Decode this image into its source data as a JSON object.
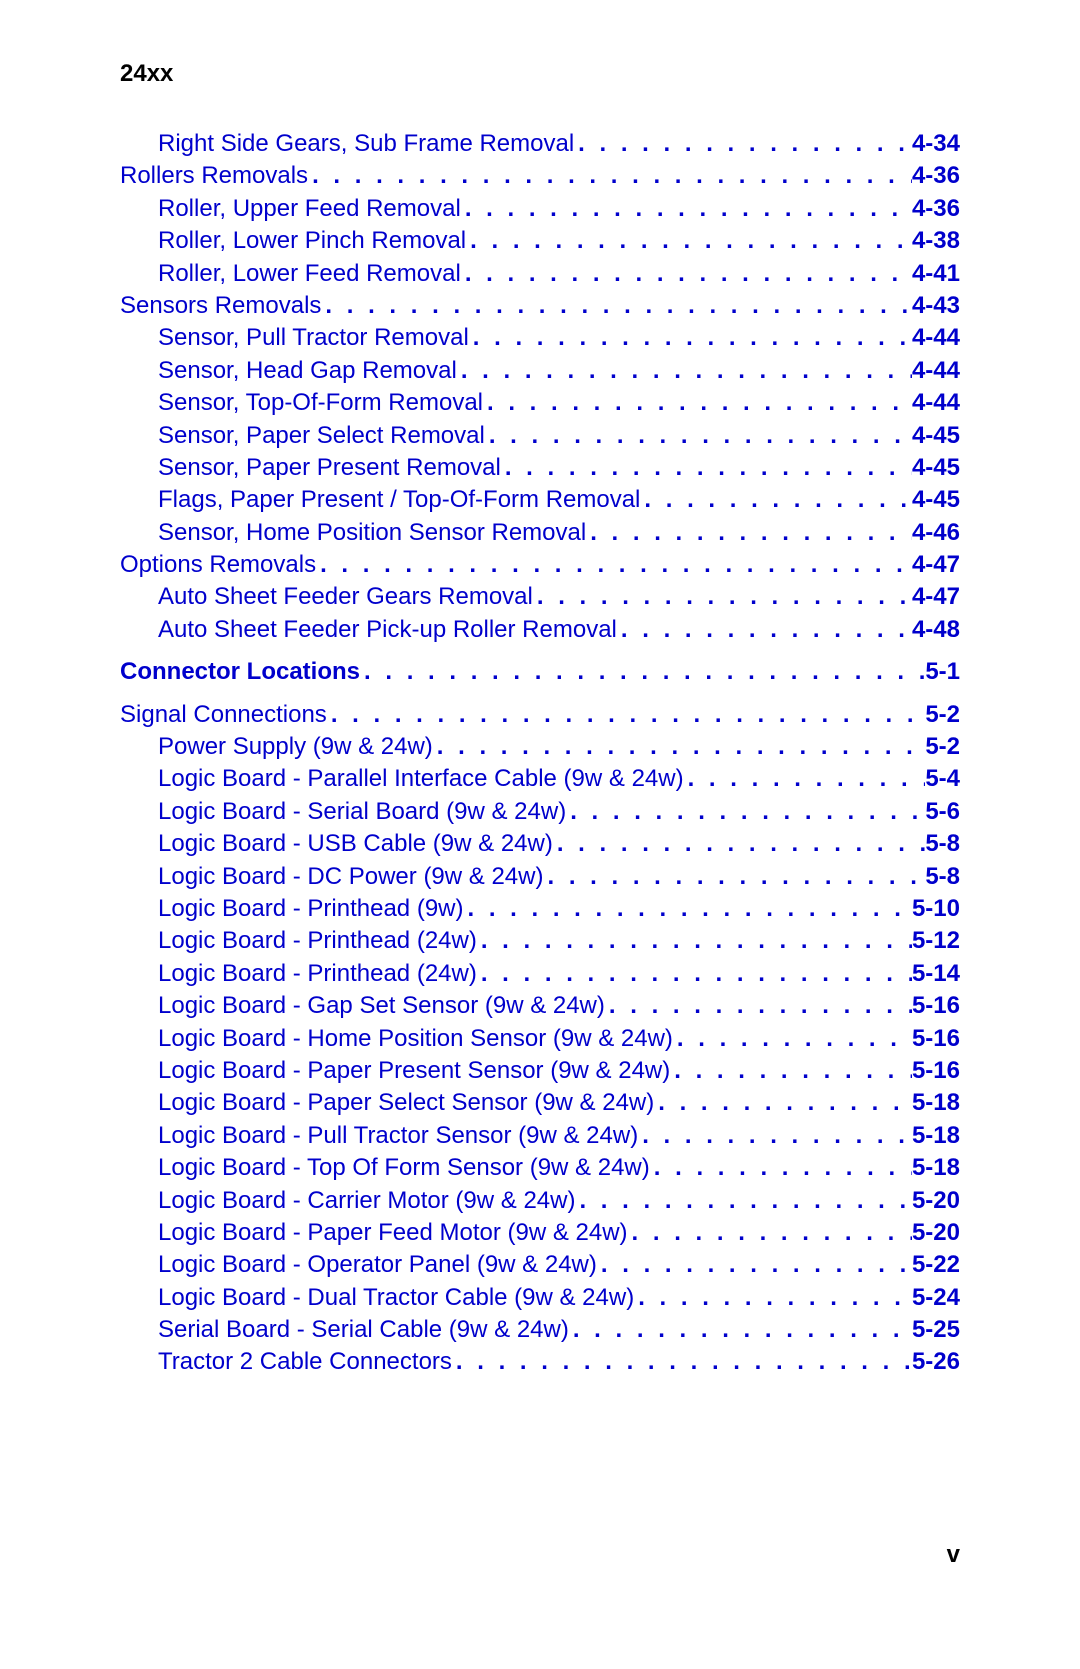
{
  "header": "24xx",
  "page_number": "v",
  "colors": {
    "link_color": "#0000cc",
    "text_color": "#000000",
    "background": "#ffffff"
  },
  "typography": {
    "font_family": "Arial, Helvetica, sans-serif",
    "body_font_size_pt": 18,
    "header_font_size_pt": 18
  },
  "toc": [
    {
      "label": "Right Side Gears, Sub Frame Removal",
      "page": "4-34",
      "indent": 2,
      "bold": false
    },
    {
      "label": "Rollers Removals",
      "page": "4-36",
      "indent": 1,
      "bold": false
    },
    {
      "label": "Roller, Upper Feed Removal",
      "page": "4-36",
      "indent": 2,
      "bold": false
    },
    {
      "label": "Roller, Lower Pinch Removal",
      "page": "4-38",
      "indent": 2,
      "bold": false
    },
    {
      "label": "Roller, Lower Feed Removal",
      "page": "4-41",
      "indent": 2,
      "bold": false
    },
    {
      "label": "Sensors Removals",
      "page": "4-43",
      "indent": 1,
      "bold": false
    },
    {
      "label": "Sensor, Pull Tractor Removal",
      "page": "4-44",
      "indent": 2,
      "bold": false
    },
    {
      "label": "Sensor, Head Gap Removal",
      "page": "4-44",
      "indent": 2,
      "bold": false
    },
    {
      "label": "Sensor, Top-Of-Form Removal",
      "page": "4-44",
      "indent": 2,
      "bold": false
    },
    {
      "label": "Sensor, Paper Select Removal",
      "page": "4-45",
      "indent": 2,
      "bold": false
    },
    {
      "label": "Sensor, Paper Present Removal",
      "page": "4-45",
      "indent": 2,
      "bold": false
    },
    {
      "label": "Flags, Paper Present / Top-Of-Form Removal",
      "page": "4-45",
      "indent": 2,
      "bold": false
    },
    {
      "label": "Sensor, Home Position Sensor Removal",
      "page": "4-46",
      "indent": 2,
      "bold": false
    },
    {
      "label": "Options Removals",
      "page": "4-47",
      "indent": 1,
      "bold": false
    },
    {
      "label": "Auto Sheet Feeder Gears Removal",
      "page": "4-47",
      "indent": 2,
      "bold": false
    },
    {
      "label": "Auto Sheet Feeder Pick-up Roller Removal",
      "page": "4-48",
      "indent": 2,
      "bold": false
    },
    {
      "label": "Connector Locations",
      "page": "5-1",
      "indent": 1,
      "bold": true,
      "gap_before": true
    },
    {
      "label": "Signal Connections",
      "page": "5-2",
      "indent": 1,
      "bold": false,
      "gap_before": true
    },
    {
      "label": "Power Supply (9w & 24w)",
      "page": "5-2",
      "indent": 2,
      "bold": false
    },
    {
      "label": "Logic Board - Parallel Interface Cable (9w & 24w)",
      "page": "5-4",
      "indent": 2,
      "bold": false
    },
    {
      "label": "Logic Board - Serial Board (9w & 24w)",
      "page": "5-6",
      "indent": 2,
      "bold": false
    },
    {
      "label": "Logic Board - USB Cable (9w & 24w)",
      "page": "5-8",
      "indent": 2,
      "bold": false
    },
    {
      "label": "Logic Board - DC Power (9w & 24w)",
      "page": "5-8",
      "indent": 2,
      "bold": false
    },
    {
      "label": "Logic Board - Printhead (9w)",
      "page": "5-10",
      "indent": 2,
      "bold": false
    },
    {
      "label": "Logic Board - Printhead (24w)",
      "page": "5-12",
      "indent": 2,
      "bold": false
    },
    {
      "label": "Logic Board - Printhead (24w)",
      "page": "5-14",
      "indent": 2,
      "bold": false
    },
    {
      "label": "Logic Board - Gap Set Sensor (9w & 24w)",
      "page": "5-16",
      "indent": 2,
      "bold": false
    },
    {
      "label": "Logic Board - Home Position Sensor (9w & 24w)",
      "page": "5-16",
      "indent": 2,
      "bold": false
    },
    {
      "label": "Logic Board - Paper Present Sensor (9w & 24w)",
      "page": "5-16",
      "indent": 2,
      "bold": false
    },
    {
      "label": "Logic Board - Paper Select Sensor (9w & 24w)",
      "page": "5-18",
      "indent": 2,
      "bold": false
    },
    {
      "label": "Logic Board - Pull Tractor Sensor (9w & 24w)",
      "page": "5-18",
      "indent": 2,
      "bold": false
    },
    {
      "label": "Logic Board - Top Of Form Sensor (9w & 24w)",
      "page": "5-18",
      "indent": 2,
      "bold": false
    },
    {
      "label": "Logic Board - Carrier Motor (9w & 24w)",
      "page": "5-20",
      "indent": 2,
      "bold": false
    },
    {
      "label": "Logic Board - Paper Feed Motor (9w & 24w)",
      "page": "5-20",
      "indent": 2,
      "bold": false
    },
    {
      "label": "Logic Board - Operator Panel (9w & 24w)",
      "page": "5-22",
      "indent": 2,
      "bold": false
    },
    {
      "label": "Logic Board - Dual Tractor Cable (9w & 24w)",
      "page": "5-24",
      "indent": 2,
      "bold": false
    },
    {
      "label": "Serial Board - Serial Cable (9w & 24w)",
      "page": "5-25",
      "indent": 2,
      "bold": false
    },
    {
      "label": "Tractor 2 Cable Connectors",
      "page": "5-26",
      "indent": 2,
      "bold": false
    }
  ]
}
